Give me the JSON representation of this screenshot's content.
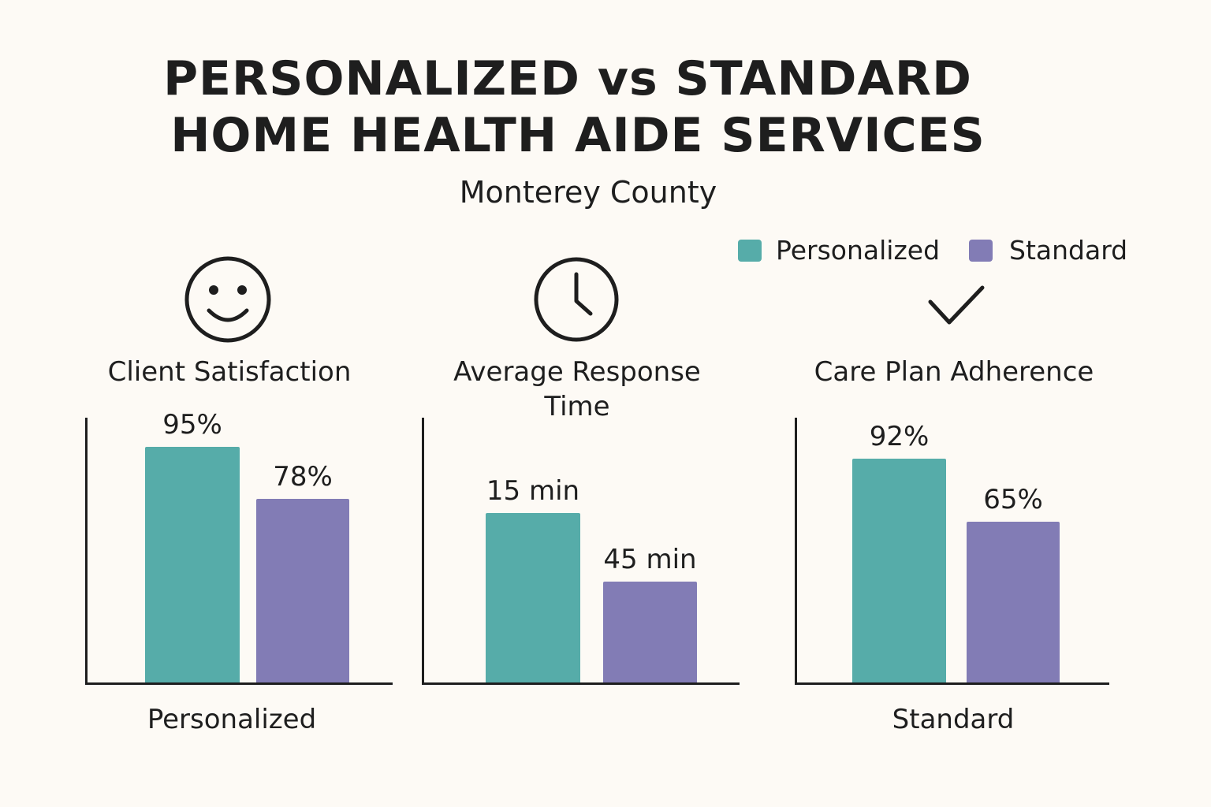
{
  "title_lines": [
    "PERSONALIZED vs STANDARD",
    "HOME HEALTH AIDE SERVICES"
  ],
  "subtitle": "Monterey County",
  "legend": [
    {
      "label": "Personalized",
      "color": "#56aca9"
    },
    {
      "label": "Standard",
      "color": "#827cb5"
    }
  ],
  "chart_data": [
    {
      "type": "bar",
      "title": "Client Satisfaction",
      "icon": "smiley-face-icon",
      "categories": [
        "Personalized",
        "Standard"
      ],
      "values": [
        95,
        78
      ],
      "labels": [
        "95%",
        "78%"
      ],
      "unit": "%",
      "xlabel": "Personalized"
    },
    {
      "type": "bar",
      "title": "Average Response Time",
      "icon": "clock-icon",
      "categories": [
        "Personalized",
        "Standard"
      ],
      "values": [
        15,
        45
      ],
      "labels": [
        "15 min",
        "45 min"
      ],
      "unit": "min",
      "xlabel": ""
    },
    {
      "type": "bar",
      "title": "Care Plan Adherence",
      "icon": "checkmark-icon",
      "categories": [
        "Personalized",
        "Standard"
      ],
      "values": [
        92,
        65
      ],
      "labels": [
        "92%",
        "65%"
      ],
      "unit": "%",
      "xlabel": "Standard"
    }
  ],
  "metric_title_lines": [
    [
      "Client Satisfaction"
    ],
    [
      "Average Response",
      "Time"
    ],
    [
      "Care Plan Adherence"
    ]
  ]
}
